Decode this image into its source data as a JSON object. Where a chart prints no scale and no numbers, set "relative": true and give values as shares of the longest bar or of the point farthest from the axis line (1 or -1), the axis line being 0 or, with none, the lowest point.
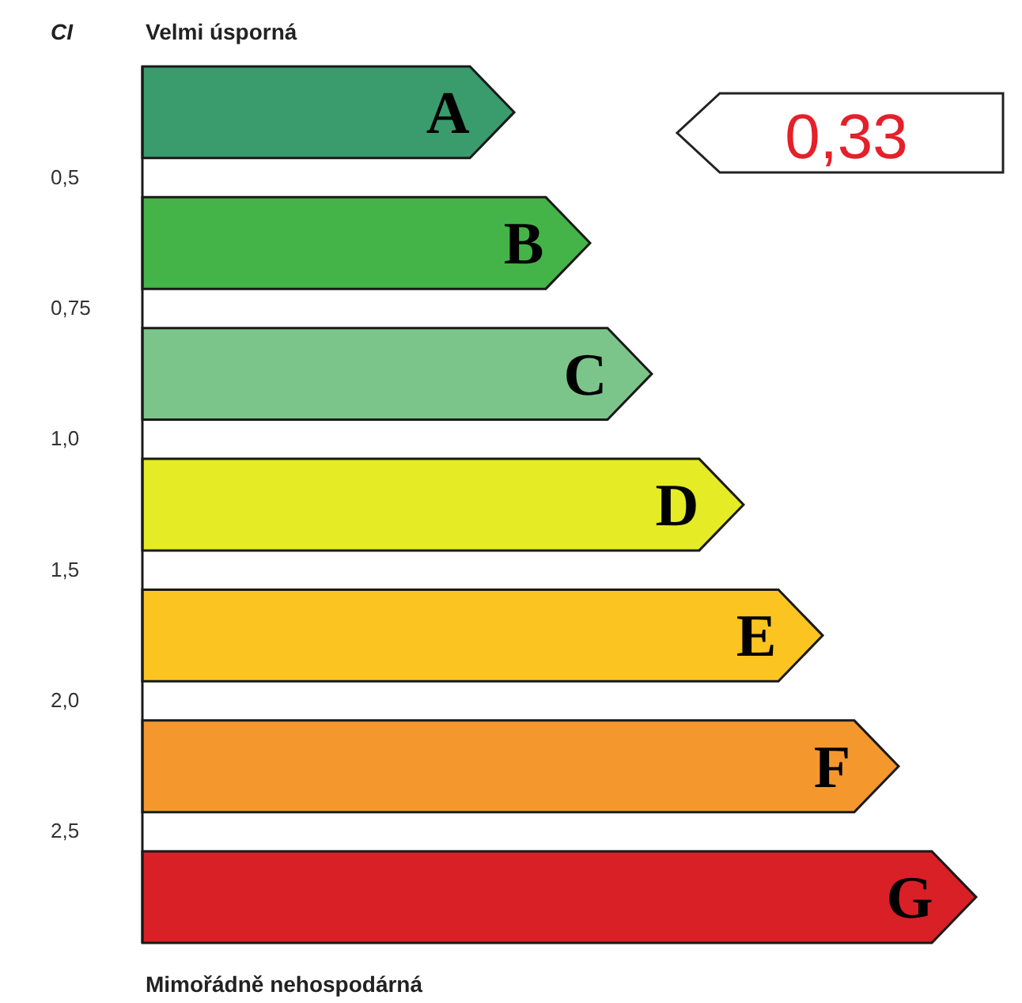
{
  "chart_data": {
    "type": "bar",
    "orientation": "horizontal",
    "relative": true,
    "ylabel": "CI",
    "categories": [
      "A",
      "B",
      "C",
      "D",
      "E",
      "F",
      "G"
    ],
    "values": [
      0.446,
      0.537,
      0.611,
      0.721,
      0.816,
      0.907,
      1
    ],
    "colors": [
      "#3a9b6c",
      "#44b449",
      "#7cc58a",
      "#e5eb25",
      "#fbc421",
      "#f4982e",
      "#d92027"
    ],
    "annotations": [
      "Velmi úsporná",
      "Mimořádně nehospodárná",
      "0,5",
      "0,75",
      "1,0",
      "1,5",
      "2,0",
      "2,5",
      "0,33"
    ]
  }
}
